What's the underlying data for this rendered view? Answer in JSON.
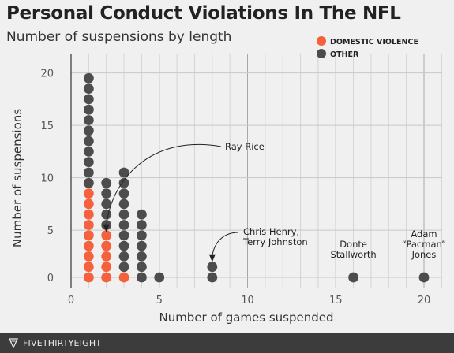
{
  "title": "Personal Conduct Violations In The NFL",
  "subtitle": "Number of suspensions by length",
  "chart_data": {
    "type": "scatter",
    "title": "Personal Conduct Violations In The NFL",
    "subtitle": "Number of suspensions by length",
    "xlabel": "Number of games suspended",
    "ylabel": "Number of suspensions",
    "xlim": [
      0,
      21.5
    ],
    "ylim": [
      0,
      21
    ],
    "x_ticks": [
      0,
      5,
      10,
      15,
      20
    ],
    "y_ticks": [
      0,
      5,
      10,
      15,
      20
    ],
    "grid": true,
    "legend_position": "top-right",
    "series": [
      {
        "name": "DOMESTIC VIOLENCE",
        "color": "#f5603d",
        "counts": [
          {
            "games": 1,
            "count": 9
          },
          {
            "games": 2,
            "count": 5
          },
          {
            "games": 3,
            "count": 1
          }
        ]
      },
      {
        "name": "OTHER",
        "color": "#4d4d4d",
        "counts": [
          {
            "games": 1,
            "count": 11
          },
          {
            "games": 2,
            "count": 5
          },
          {
            "games": 3,
            "count": 10
          },
          {
            "games": 4,
            "count": 7
          },
          {
            "games": 5,
            "count": 1
          },
          {
            "games": 8,
            "count": 2
          },
          {
            "games": 16,
            "count": 1
          },
          {
            "games": 20,
            "count": 1
          }
        ]
      }
    ],
    "annotations": [
      {
        "text": "Ray Rice",
        "games": 2,
        "suspension": 5
      },
      {
        "text": "Chris Henry,\nTerry Johnston",
        "games": 8,
        "suspension": 2
      },
      {
        "text": "Donte\nStallworth",
        "games": 16,
        "suspension": 1
      },
      {
        "text": "Adam\n“Pacman”\nJones",
        "games": 20,
        "suspension": 1
      }
    ]
  },
  "footer": {
    "brand": "FIVETHIRTYEIGHT"
  }
}
